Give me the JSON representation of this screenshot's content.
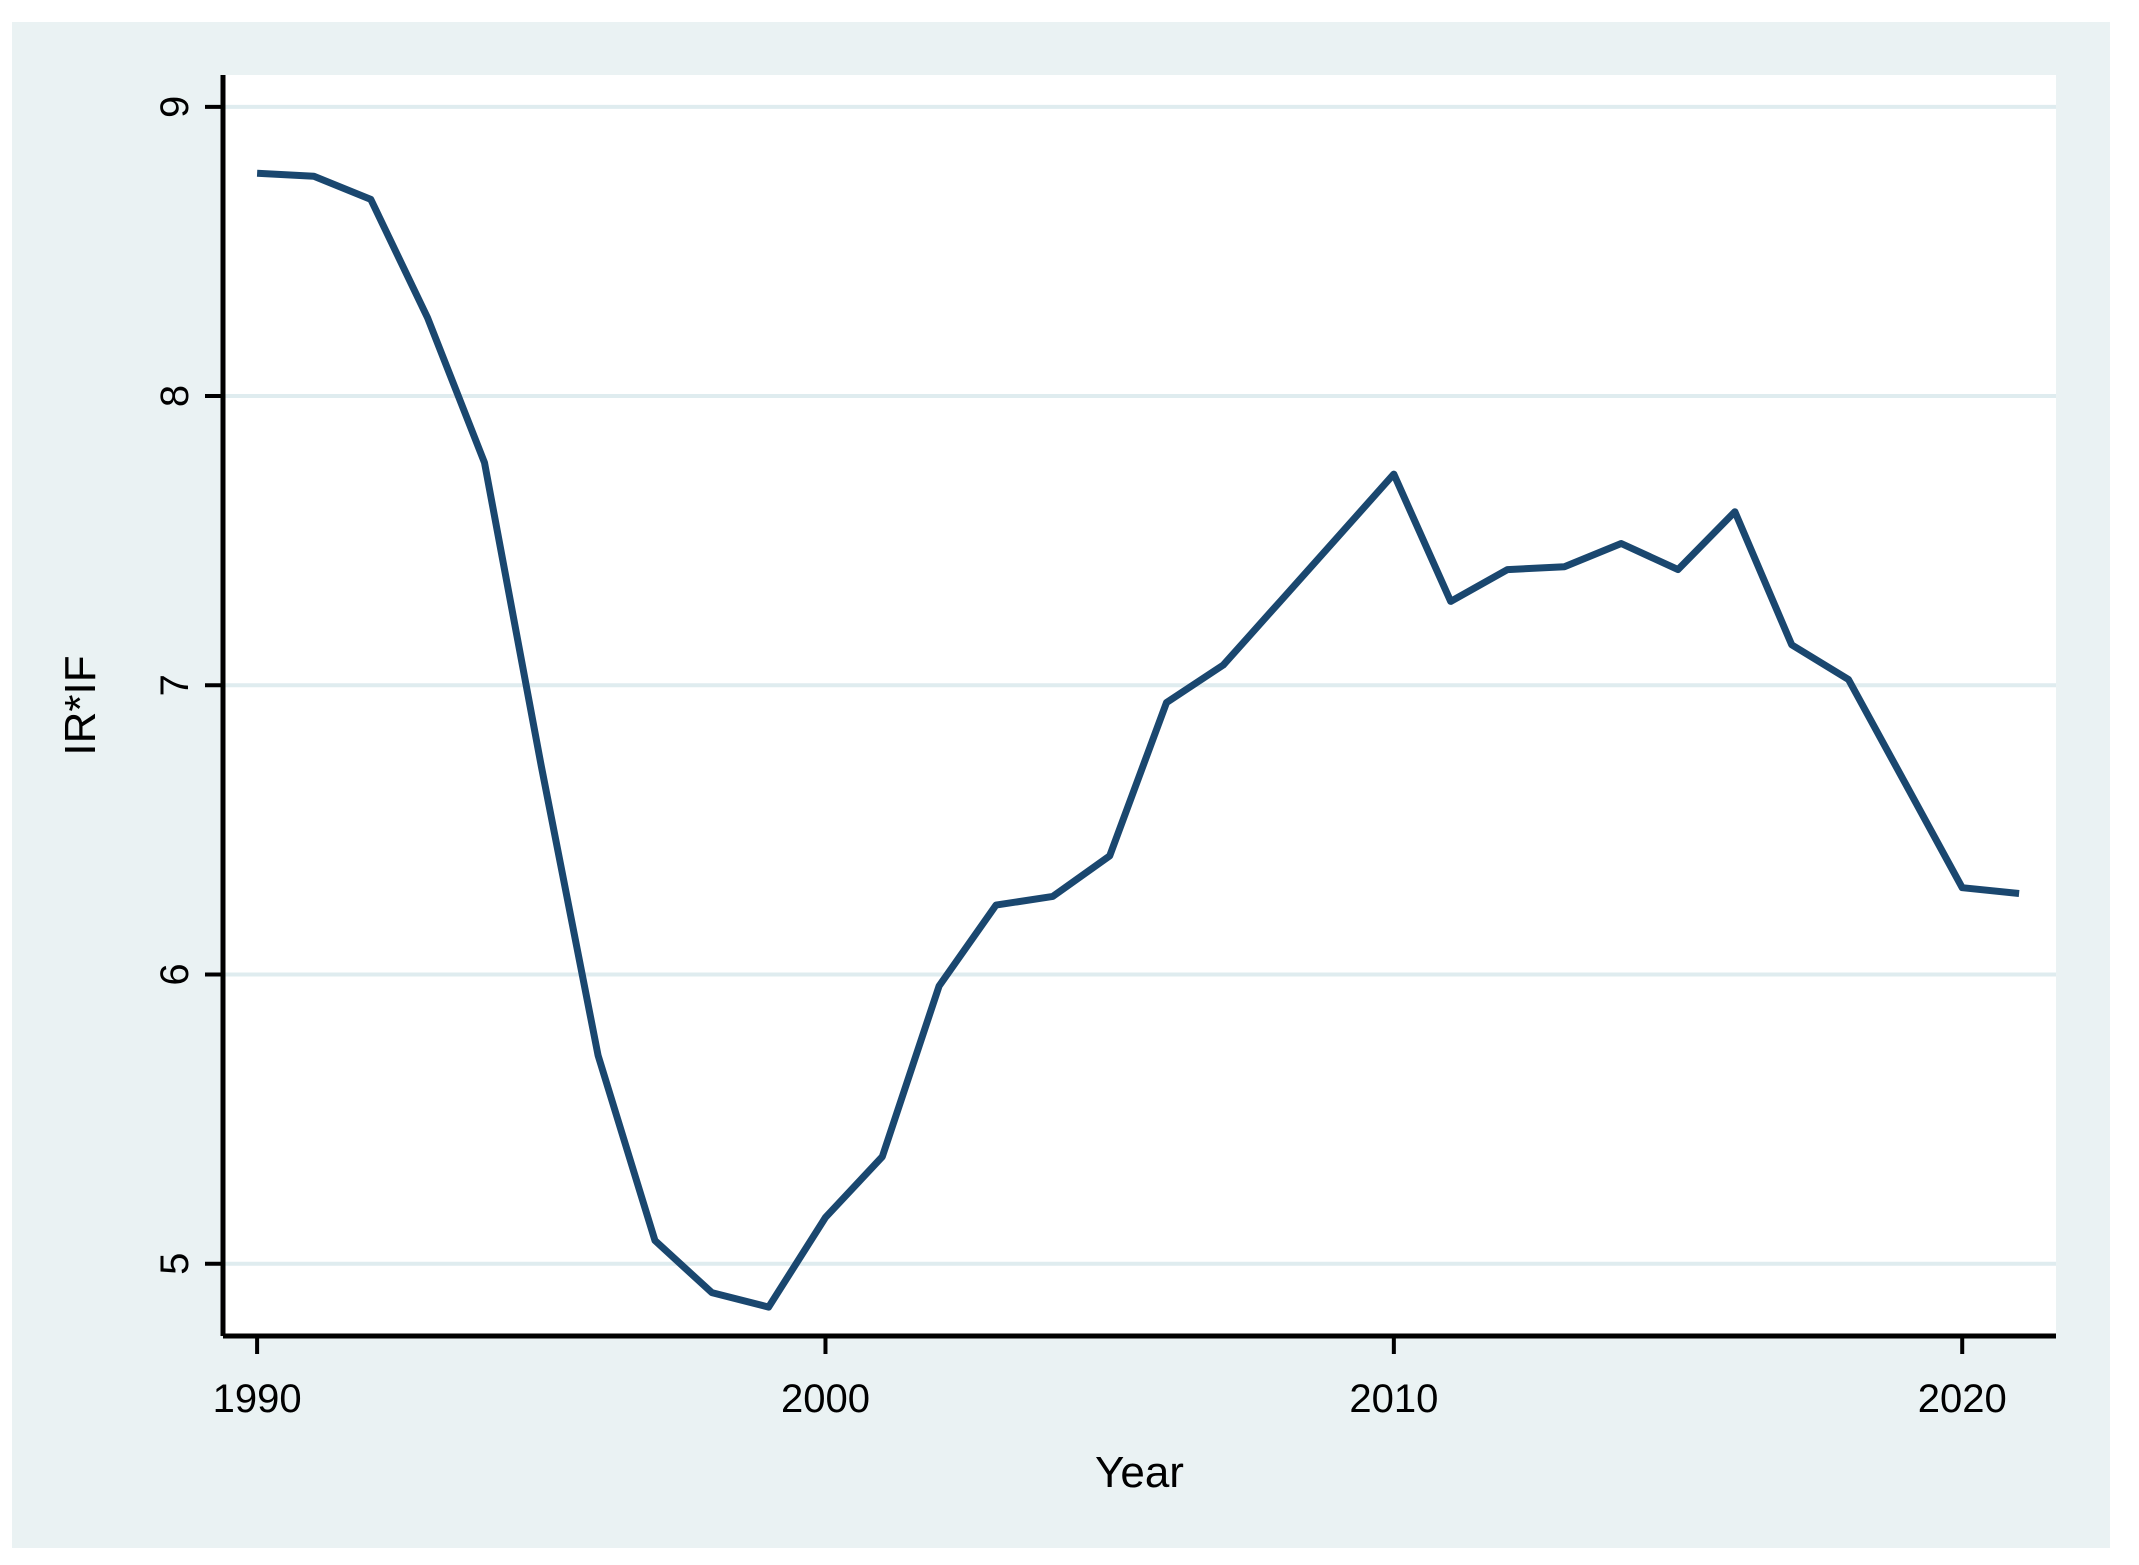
{
  "chart_data": {
    "type": "line",
    "x": [
      1990,
      1991,
      1992,
      1993,
      1994,
      1995,
      1996,
      1997,
      1998,
      1999,
      2000,
      2001,
      2002,
      2003,
      2004,
      2005,
      2006,
      2007,
      2008,
      2009,
      2010,
      2011,
      2012,
      2013,
      2014,
      2015,
      2016,
      2017,
      2018,
      2019,
      2020,
      2021
    ],
    "series": [
      {
        "name": "IR*IF",
        "values": [
          8.77,
          8.76,
          8.68,
          8.27,
          7.77,
          6.72,
          5.72,
          5.08,
          4.9,
          4.85,
          5.16,
          5.37,
          5.96,
          6.24,
          6.27,
          6.41,
          6.94,
          7.07,
          7.29,
          7.51,
          7.73,
          7.29,
          7.4,
          7.41,
          7.49,
          7.4,
          7.6,
          7.14,
          7.02,
          6.66,
          6.3,
          6.28
        ]
      }
    ],
    "title": "",
    "xlabel": "Year",
    "ylabel": "IR*IF",
    "xlim": [
      1989.4,
      2021.65
    ],
    "ylim": [
      4.75,
      9.11
    ],
    "xticks": [
      1990,
      2000,
      2010,
      2020
    ],
    "yticks": [
      5,
      6,
      7,
      8,
      9
    ],
    "grid": "horizontal",
    "legend_position": "none",
    "colors": {
      "line": "#1a476f",
      "graph_background": "#eaf2f3",
      "plot_background": "#ffffff",
      "gridline": "#dfecef",
      "axis": "#000000",
      "text": "#000000"
    }
  }
}
